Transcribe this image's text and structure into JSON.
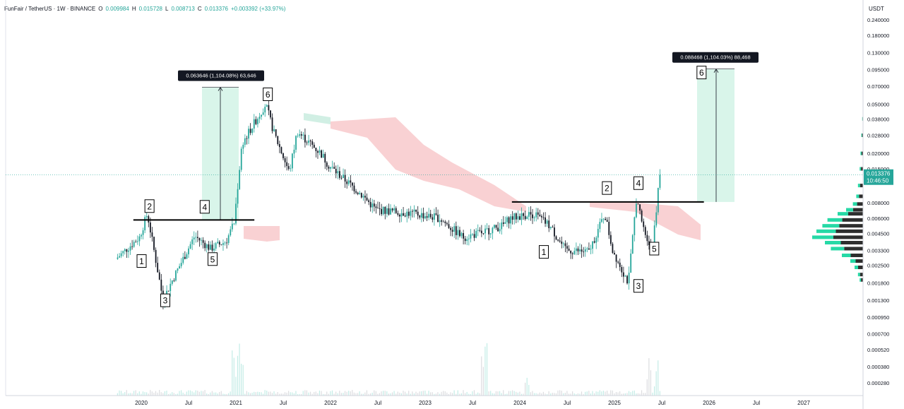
{
  "header": {
    "symbol": "FunFair / TetherUS · 1W · BINANCE",
    "o_label": "O",
    "o_value": "0.009984",
    "h_label": "H",
    "h_value": "0.015728",
    "l_label": "L",
    "l_value": "0.008713",
    "c_label": "C",
    "c_value": "0.013376",
    "change": "+0.003392 (+33.97%)"
  },
  "colors": {
    "up": "#26a69a",
    "down": "#131722",
    "cloud_bear": "#f8c9cb",
    "cloud_bull": "#c9ecdf",
    "measure_fill": "#d9f5ea",
    "volume_profile": "#26d9a6",
    "current_price": "#26a69a"
  },
  "chart_data": {
    "type": "line",
    "axis_title": "USDT",
    "x_ticks": [
      "2020",
      "Jul",
      "2021",
      "Jul",
      "2022",
      "Jul",
      "2023",
      "Jul",
      "2024",
      "Jul",
      "2025",
      "Jul",
      "2026",
      "Jul",
      "2027"
    ],
    "y_ticks": [
      "0.240000",
      "0.180000",
      "0.130000",
      "0.095000",
      "0.070000",
      "0.050000",
      "0.038000",
      "0.028000",
      "0.020000",
      "0.015000",
      "0.008000",
      "0.006000",
      "0.004500",
      "0.003300",
      "0.002500",
      "0.001800",
      "0.001300",
      "0.000950",
      "0.000700",
      "0.000520",
      "0.000380",
      "0.000280"
    ],
    "y_scale": "log",
    "current_price": "0.013376",
    "current_countdown": "10:46:50",
    "series": [
      {
        "x": [
          "2019-10",
          "2020-01",
          "2020-02",
          "2020-04",
          "2020-05",
          "2020-08",
          "2020-10",
          "2020-12",
          "2021-01",
          "2021-02",
          "2021-05",
          "2021-06",
          "2021-08",
          "2021-09",
          "2021-12",
          "2022-01",
          "2022-05",
          "2022-07",
          "2022-12",
          "2023-03",
          "2023-06",
          "2023-08",
          "2023-11",
          "2023-12",
          "2024-03",
          "2024-05",
          "2024-07",
          "2024-10",
          "2024-12",
          "2025-01",
          "2025-03",
          "2025-04",
          "2025-05",
          "2025-06",
          "2025-07"
        ],
        "values": [
          0.0028,
          0.0042,
          0.0065,
          0.0013,
          0.0018,
          0.0043,
          0.0034,
          0.0039,
          0.0055,
          0.024,
          0.05,
          0.03,
          0.014,
          0.03,
          0.02,
          0.016,
          0.0095,
          0.007,
          0.0065,
          0.006,
          0.0042,
          0.0045,
          0.0052,
          0.006,
          0.0065,
          0.0052,
          0.0033,
          0.0032,
          0.0065,
          0.0033,
          0.0018,
          0.0085,
          0.0047,
          0.0035,
          0.0134
        ]
      }
    ],
    "wave_labels": [
      {
        "label": "1",
        "date": "2020-01",
        "price": 0.0027
      },
      {
        "label": "2",
        "date": "2020-02",
        "price": 0.0075
      },
      {
        "label": "3",
        "date": "2020-04",
        "price": 0.0013
      },
      {
        "label": "4",
        "date": "2020-09",
        "price": 0.0074
      },
      {
        "label": "5",
        "date": "2020-10",
        "price": 0.0028
      },
      {
        "label": "6",
        "date": "2021-05",
        "price": 0.06
      },
      {
        "label": "1",
        "date": "2024-04",
        "price": 0.0032
      },
      {
        "label": "2",
        "date": "2024-12",
        "price": 0.0105
      },
      {
        "label": "3",
        "date": "2025-04",
        "price": 0.0017
      },
      {
        "label": "4",
        "date": "2025-04",
        "price": 0.0115
      },
      {
        "label": "5",
        "date": "2025-06",
        "price": 0.0034
      },
      {
        "label": "6",
        "date": "2025-12",
        "price": 0.09
      }
    ],
    "measurements": [
      {
        "text": "0.063646 (1,104.08%) 63,646",
        "from": 0.0058,
        "to": 0.0683
      },
      {
        "text": "0.088468 (1,104.03%) 88,468",
        "from": 0.0081,
        "to": 0.096
      }
    ],
    "resistance_lines": [
      {
        "price": 0.0058,
        "from": "2019-12",
        "to": "2021-02"
      },
      {
        "price": 0.0081,
        "from": "2023-12",
        "to": "2025-11"
      }
    ]
  }
}
